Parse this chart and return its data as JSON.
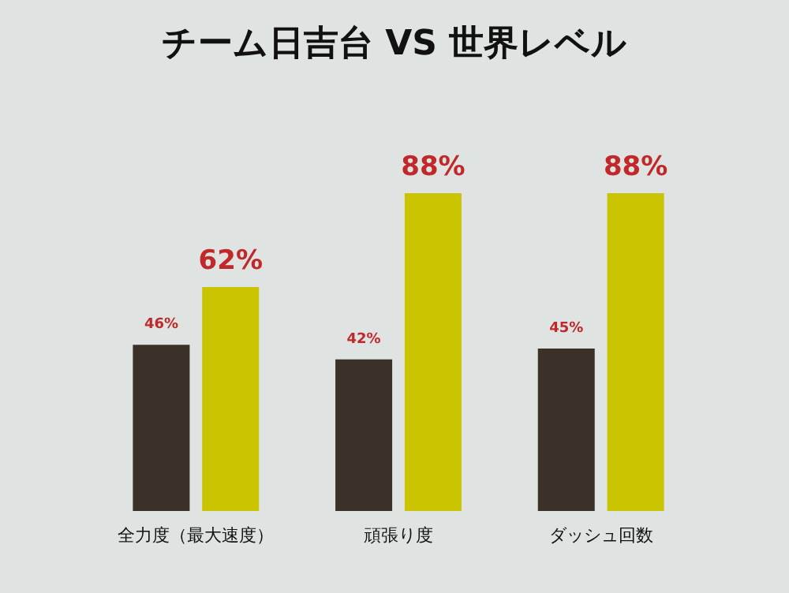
{
  "chart_data": {
    "type": "bar",
    "title": "チーム日吉台 VS 世界レベル",
    "categories": [
      "全力度（最大速度）",
      "頑張り度",
      "ダッシュ回数"
    ],
    "series": [
      {
        "color": "#3b3128",
        "values": [
          46,
          42,
          45
        ],
        "value_labels": [
          "46%",
          "42%",
          "45%"
        ]
      },
      {
        "color": "#c9c300",
        "values": [
          62,
          88,
          88
        ],
        "value_labels": [
          "62%",
          "88%",
          "88%"
        ]
      }
    ]
  }
}
